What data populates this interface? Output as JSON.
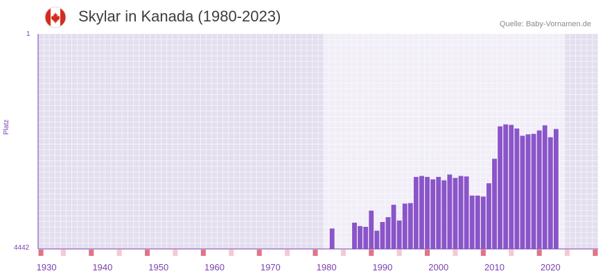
{
  "header": {
    "title": "Skylar in Kanada (1980-2023)",
    "source": "Quelle: Baby-Vornamen.de",
    "flag_icon": "canada-flag-icon"
  },
  "colors": {
    "bar": "#8a55c9",
    "axis": "#7a3fb0",
    "marker_dark": "#e07585",
    "marker_light": "#f5c9d2"
  },
  "chart_data": {
    "type": "bar",
    "title": "Skylar in Kanada (1980-2023)",
    "xlabel": "",
    "ylabel": "Platz",
    "y_axis_inverted": true,
    "ylim": [
      4442,
      1
    ],
    "y_tick_labels": [
      "1",
      "4442"
    ],
    "xlim": [
      1929,
      2029
    ],
    "x_ticks": [
      1930,
      1940,
      1950,
      1960,
      1970,
      1980,
      1990,
      2000,
      2010,
      2020
    ],
    "highlight_range": [
      1980,
      2023
    ],
    "series": [
      {
        "name": "Platz",
        "x": [
          1981,
          1985,
          1986,
          1987,
          1988,
          1989,
          1990,
          1991,
          1992,
          1993,
          1994,
          1995,
          1996,
          1997,
          1998,
          1999,
          2000,
          2001,
          2002,
          2003,
          2004,
          2005,
          2006,
          2007,
          2008,
          2009,
          2010,
          2011,
          2012,
          2013,
          2014,
          2015,
          2016,
          2017,
          2018,
          2019,
          2020,
          2021
        ],
        "values": [
          4020,
          3900,
          3970,
          3985,
          3650,
          4065,
          3885,
          3785,
          3530,
          3855,
          3505,
          3495,
          2955,
          2935,
          2955,
          3005,
          2955,
          3025,
          2905,
          2975,
          2935,
          2945,
          3340,
          3340,
          3360,
          3085,
          2580,
          1910,
          1870,
          1880,
          1955,
          2105,
          2075,
          2065,
          1995,
          1890,
          2135,
          1965
        ]
      }
    ]
  }
}
